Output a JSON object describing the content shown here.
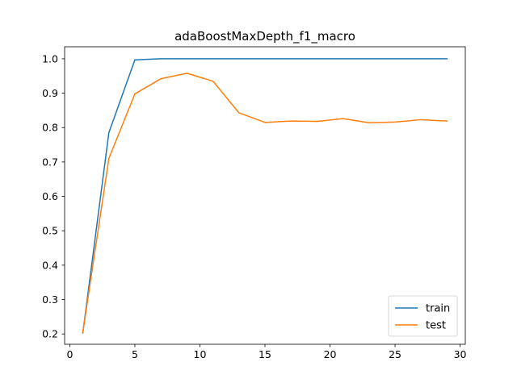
{
  "chart_data": {
    "type": "line",
    "title": "adaBoostMaxDepth_f1_macro",
    "xlabel": "",
    "ylabel": "",
    "xlim": [
      -0.4,
      30.4
    ],
    "ylim": [
      0.17,
      1.035
    ],
    "xticks": [
      0,
      5,
      10,
      15,
      20,
      25,
      30
    ],
    "yticks": [
      0.2,
      0.3,
      0.4,
      0.5,
      0.6,
      0.7,
      0.8,
      0.9,
      1.0
    ],
    "grid": false,
    "legend_position": "lower right",
    "x": [
      1,
      3,
      5,
      7,
      9,
      11,
      13,
      15,
      17,
      19,
      21,
      23,
      25,
      27,
      29
    ],
    "series": [
      {
        "name": "train",
        "color": "#1f77b4",
        "values": [
          0.203,
          0.785,
          0.997,
          1.0,
          1.0,
          1.0,
          1.0,
          1.0,
          1.0,
          1.0,
          1.0,
          1.0,
          1.0,
          1.0,
          1.0
        ]
      },
      {
        "name": "test",
        "color": "#ff7f0e",
        "values": [
          0.205,
          0.71,
          0.898,
          0.942,
          0.958,
          0.935,
          0.843,
          0.815,
          0.819,
          0.818,
          0.826,
          0.814,
          0.816,
          0.823,
          0.819
        ]
      }
    ]
  }
}
